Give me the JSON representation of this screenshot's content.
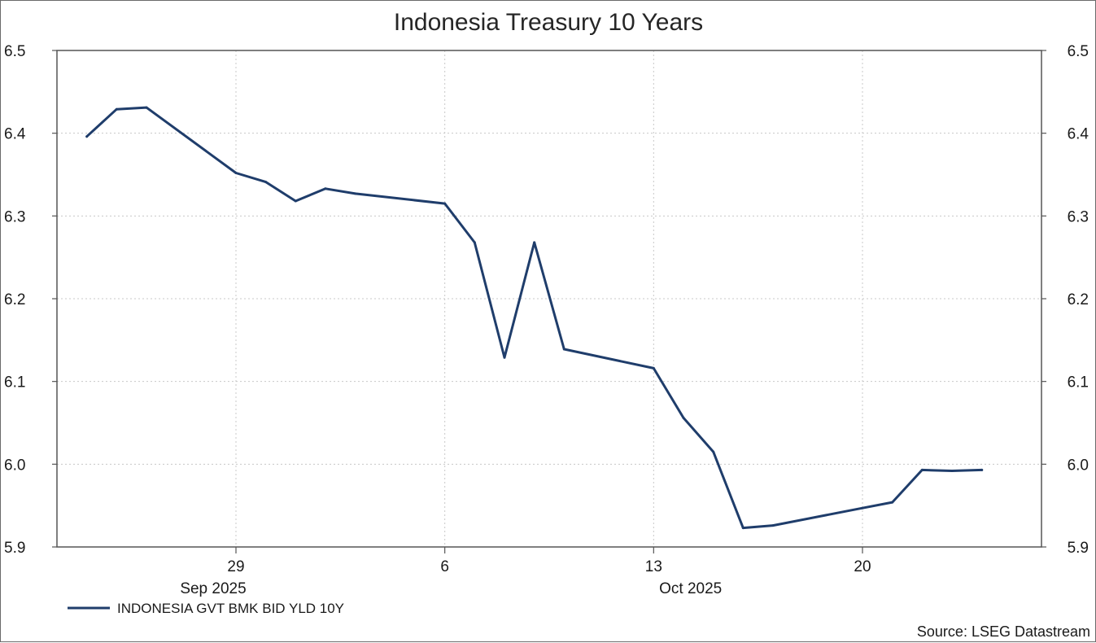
{
  "chart_data": {
    "type": "line",
    "title": "Indonesia Treasury 10 Years",
    "source": "Source: LSEG Datastream",
    "x": [
      "2025-09-24",
      "2025-09-25",
      "2025-09-26",
      "2025-09-29",
      "2025-09-30",
      "2025-10-01",
      "2025-10-02",
      "2025-10-03",
      "2025-10-06",
      "2025-10-07",
      "2025-10-08",
      "2025-10-09",
      "2025-10-10",
      "2025-10-13",
      "2025-10-14",
      "2025-10-15",
      "2025-10-16",
      "2025-10-17",
      "2025-10-20",
      "2025-10-21",
      "2025-10-22",
      "2025-10-23",
      "2025-10-24"
    ],
    "series": [
      {
        "name": "INDONESIA GVT BMK BID YLD 10Y",
        "color": "#1f3d6b",
        "values": [
          6.396,
          6.429,
          6.431,
          6.352,
          6.341,
          6.318,
          6.333,
          6.327,
          6.315,
          6.268,
          6.129,
          6.268,
          6.139,
          6.116,
          6.056,
          6.015,
          5.923,
          5.926,
          5.947,
          5.954,
          5.993,
          5.992,
          5.993
        ]
      }
    ],
    "ylim": [
      5.9,
      6.5
    ],
    "xlim": [
      "2025-09-23",
      "2025-10-26"
    ],
    "y_ticks": [
      {
        "value": 5.9,
        "label": "5.9"
      },
      {
        "value": 6.0,
        "label": "6.0"
      },
      {
        "value": 6.1,
        "label": "6.1"
      },
      {
        "value": 6.2,
        "label": "6.2"
      },
      {
        "value": 6.3,
        "label": "6.3"
      },
      {
        "value": 6.4,
        "label": "6.4"
      },
      {
        "value": 6.5,
        "label": "6.5"
      }
    ],
    "x_ticks": [
      {
        "date": "2025-09-29",
        "label": "29"
      },
      {
        "date": "2025-10-06",
        "label": "6"
      },
      {
        "date": "2025-10-13",
        "label": "13"
      },
      {
        "date": "2025-10-20",
        "label": "20"
      }
    ],
    "x_month_labels": [
      {
        "date": "2025-09-29",
        "label": "Sep 2025"
      },
      {
        "date": "2025-10-15",
        "label": "Oct 2025"
      }
    ],
    "grid": true,
    "y_axis_both_sides": true,
    "legend_position": "bottom-left"
  }
}
